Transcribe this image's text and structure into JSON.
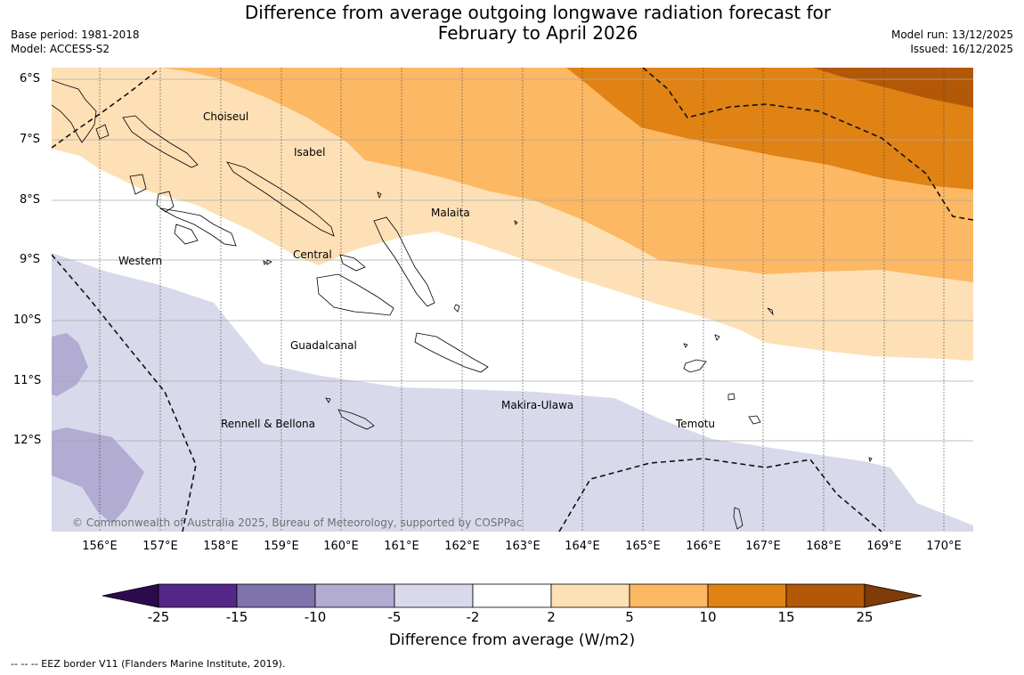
{
  "title": {
    "line1": "Difference from average outgoing longwave radiation forecast for",
    "line2": "February to April 2026"
  },
  "meta": {
    "base_period": "Base period: 1981-2018",
    "model": "Model: ACCESS-S2",
    "model_run": "Model run: 13/12/2025",
    "issued": "Issued: 16/12/2025"
  },
  "axes": {
    "lat_labels": [
      "6°S",
      "7°S",
      "8°S",
      "9°S",
      "10°S",
      "11°S",
      "12°S"
    ],
    "lon_labels": [
      "156°E",
      "157°E",
      "158°E",
      "159°E",
      "160°E",
      "161°E",
      "162°E",
      "163°E",
      "164°E",
      "165°E",
      "166°E",
      "167°E",
      "168°E",
      "169°E",
      "170°E"
    ]
  },
  "places": {
    "choiseul": "Choiseul",
    "isabel": "Isabel",
    "malaita": "Malaita",
    "western": "Western",
    "central": "Central",
    "guadalcanal": "Guadalcanal",
    "makira": "Makira-Ulawa",
    "rennell": "Rennell & Bellona",
    "temotu": "Temotu"
  },
  "copyright": "© Commonwealth of Australia 2025, Bureau of Meteorology, supported by COSPPac",
  "colorbar": {
    "ticks": [
      "-25",
      "-15",
      "-10",
      "-5",
      "-2",
      "2",
      "5",
      "10",
      "15",
      "25"
    ],
    "colors": [
      "#2d0a4e",
      "#542788",
      "#8073ac",
      "#b2abd2",
      "#d8daeb",
      "#ffffff",
      "#fee0b6",
      "#fdb863",
      "#e08214",
      "#b35806",
      "#7f3b08"
    ],
    "label": "Difference from average (W/m2)"
  },
  "footnote": "--  --  -- EEZ border V11 (Flanders Marine Institute, 2019)."
}
